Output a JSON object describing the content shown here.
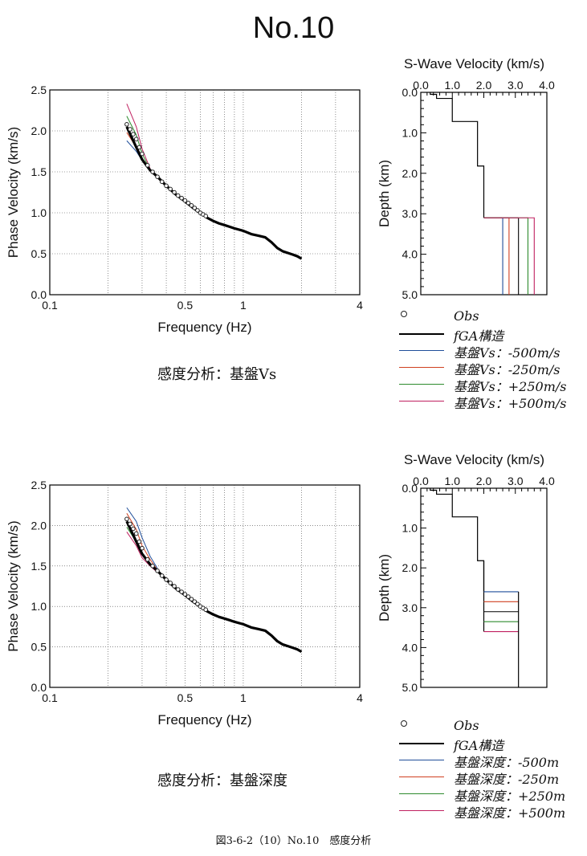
{
  "page": {
    "title": "No.10",
    "figure_caption": "図3-6-2（10）No.10　感度分析"
  },
  "chart_data": [
    {
      "type": "line",
      "title": "",
      "xlabel": "Frequency (Hz)",
      "ylabel": "Phase Velocity (km/s)",
      "xscale": "log",
      "xlim": [
        0.1,
        4
      ],
      "ylim": [
        0,
        2.5
      ],
      "xtick_labels": [
        "0.1",
        "0.5",
        "1",
        "4"
      ],
      "ytick_labels": [
        "0.0",
        "0.5",
        "1.0",
        "1.5",
        "2.0",
        "2.5"
      ],
      "grid": true,
      "caption": "感度分析：基盤Vs",
      "observed": {
        "name": "Obs",
        "x": [
          0.25,
          0.26,
          0.27,
          0.28,
          0.29,
          0.3,
          0.32,
          0.34,
          0.36,
          0.38,
          0.4,
          0.42,
          0.44,
          0.46,
          0.48,
          0.5,
          0.52,
          0.54,
          0.56,
          0.58,
          0.6,
          0.62,
          0.64
        ],
        "y": [
          2.08,
          2.02,
          1.96,
          1.9,
          1.8,
          1.72,
          1.58,
          1.5,
          1.44,
          1.38,
          1.33,
          1.29,
          1.25,
          1.21,
          1.18,
          1.15,
          1.12,
          1.09,
          1.06,
          1.03,
          1.0,
          0.98,
          0.96
        ]
      },
      "series": [
        {
          "name": "fGA構造",
          "color": "#000000",
          "x": [
            0.25,
            0.28,
            0.3,
            0.33,
            0.36,
            0.4,
            0.45,
            0.5,
            0.55,
            0.6,
            0.65,
            0.7,
            0.75,
            0.8,
            0.85,
            0.9,
            1.0,
            1.1,
            1.2,
            1.3,
            1.4,
            1.5,
            1.6,
            1.7,
            1.8,
            1.9,
            2.0
          ],
          "y": [
            2.05,
            1.8,
            1.65,
            1.52,
            1.44,
            1.33,
            1.22,
            1.14,
            1.06,
            1.0,
            0.94,
            0.9,
            0.87,
            0.85,
            0.83,
            0.81,
            0.78,
            0.74,
            0.72,
            0.7,
            0.64,
            0.57,
            0.53,
            0.51,
            0.49,
            0.47,
            0.44
          ]
        },
        {
          "name": "基盤Vs：-500m/s",
          "color": "#1f4e9a",
          "x": [
            0.25,
            0.28,
            0.3,
            0.33
          ],
          "y": [
            1.88,
            1.75,
            1.64,
            1.52
          ]
        },
        {
          "name": "基盤Vs：-250m/s",
          "color": "#d04020",
          "x": [
            0.25,
            0.28,
            0.3,
            0.33
          ],
          "y": [
            1.98,
            1.8,
            1.66,
            1.52
          ]
        },
        {
          "name": "基盤Vs：+250m/s",
          "color": "#2e8b2e",
          "x": [
            0.25,
            0.28,
            0.3,
            0.33
          ],
          "y": [
            2.18,
            1.95,
            1.72,
            1.53
          ]
        },
        {
          "name": "基盤Vs：+500m/s",
          "color": "#c02060",
          "x": [
            0.25,
            0.28,
            0.3,
            0.33
          ],
          "y": [
            2.33,
            2.05,
            1.78,
            1.54
          ]
        }
      ]
    },
    {
      "type": "line",
      "title": "S-Wave Velocity (km/s)",
      "xlabel": "S-Wave Velocity (km/s)",
      "ylabel": "Depth (km)",
      "xlim": [
        0,
        4
      ],
      "ylim": [
        5,
        0
      ],
      "xtick_labels": [
        "0.0",
        "1.0",
        "2.0",
        "3.0",
        "4.0"
      ],
      "ytick_labels": [
        "0.0",
        "1.0",
        "2.0",
        "3.0",
        "4.0",
        "5.0"
      ],
      "layers_base": {
        "velocity": [
          0.3,
          0.5,
          1.0,
          1.8,
          2.0
        ],
        "top_depth": [
          0.0,
          0.05,
          0.15,
          0.72,
          1.82
        ]
      },
      "halfspace_depth": 3.1,
      "halfspace_velocities": [
        2.6,
        2.8,
        3.1,
        3.4,
        3.6
      ],
      "halfspace_colors": [
        "#1f4e9a",
        "#d04020",
        "#000000",
        "#2e8b2e",
        "#c02060"
      ]
    },
    {
      "type": "line",
      "title": "",
      "xlabel": "Frequency (Hz)",
      "ylabel": "Phase Velocity (km/s)",
      "xscale": "log",
      "xlim": [
        0.1,
        4
      ],
      "ylim": [
        0,
        2.5
      ],
      "xtick_labels": [
        "0.1",
        "0.5",
        "1",
        "4"
      ],
      "ytick_labels": [
        "0.0",
        "0.5",
        "1.0",
        "1.5",
        "2.0",
        "2.5"
      ],
      "grid": true,
      "caption": "感度分析：基盤深度",
      "observed": {
        "name": "Obs",
        "x": [
          0.25,
          0.26,
          0.27,
          0.28,
          0.29,
          0.3,
          0.32,
          0.34,
          0.36,
          0.38,
          0.4,
          0.42,
          0.44,
          0.46,
          0.48,
          0.5,
          0.52,
          0.54,
          0.56,
          0.58,
          0.6,
          0.62,
          0.64
        ],
        "y": [
          2.08,
          2.02,
          1.96,
          1.9,
          1.8,
          1.72,
          1.58,
          1.5,
          1.44,
          1.38,
          1.33,
          1.29,
          1.25,
          1.21,
          1.18,
          1.15,
          1.12,
          1.09,
          1.06,
          1.03,
          1.0,
          0.98,
          0.96
        ]
      },
      "series": [
        {
          "name": "fGA構造",
          "color": "#000000",
          "x": [
            0.25,
            0.28,
            0.3,
            0.33,
            0.36,
            0.4,
            0.45,
            0.5,
            0.55,
            0.6,
            0.65,
            0.7,
            0.75,
            0.8,
            0.85,
            0.9,
            1.0,
            1.1,
            1.2,
            1.3,
            1.4,
            1.5,
            1.6,
            1.7,
            1.8,
            1.9,
            2.0
          ],
          "y": [
            2.05,
            1.8,
            1.65,
            1.52,
            1.44,
            1.33,
            1.22,
            1.14,
            1.06,
            1.0,
            0.94,
            0.9,
            0.87,
            0.85,
            0.83,
            0.81,
            0.78,
            0.74,
            0.72,
            0.7,
            0.64,
            0.57,
            0.53,
            0.51,
            0.49,
            0.47,
            0.44
          ]
        },
        {
          "name": "基盤深度：-500m",
          "color": "#1f4e9a",
          "x": [
            0.25,
            0.28,
            0.3,
            0.33,
            0.36
          ],
          "y": [
            2.22,
            2.05,
            1.85,
            1.62,
            1.47
          ]
        },
        {
          "name": "基盤深度：-250m",
          "color": "#d04020",
          "x": [
            0.25,
            0.28,
            0.3,
            0.33,
            0.36
          ],
          "y": [
            2.15,
            1.95,
            1.75,
            1.58,
            1.45
          ]
        },
        {
          "name": "基盤深度：+250m",
          "color": "#2e8b2e",
          "x": [
            0.25,
            0.28,
            0.3,
            0.33,
            0.36
          ],
          "y": [
            1.98,
            1.8,
            1.65,
            1.52,
            1.43
          ]
        },
        {
          "name": "基盤深度：+500m",
          "color": "#c02060",
          "x": [
            0.25,
            0.28,
            0.3,
            0.33,
            0.36
          ],
          "y": [
            1.92,
            1.75,
            1.6,
            1.5,
            1.42
          ]
        }
      ]
    },
    {
      "type": "line",
      "title": "S-Wave Velocity (km/s)",
      "xlabel": "S-Wave Velocity (km/s)",
      "ylabel": "Depth (km)",
      "xlim": [
        0,
        4
      ],
      "ylim": [
        5,
        0
      ],
      "xtick_labels": [
        "0.0",
        "1.0",
        "2.0",
        "3.0",
        "4.0"
      ],
      "ytick_labels": [
        "0.0",
        "1.0",
        "2.0",
        "3.0",
        "4.0",
        "5.0"
      ],
      "layers_base": {
        "velocity": [
          0.3,
          0.5,
          1.0,
          1.8,
          2.0
        ],
        "top_depth": [
          0.0,
          0.05,
          0.15,
          0.72,
          1.82
        ]
      },
      "halfspace_velocity": 3.1,
      "halfspace_depths": [
        2.6,
        2.85,
        3.1,
        3.35,
        3.6
      ],
      "halfspace_colors": [
        "#1f4e9a",
        "#d04020",
        "#000000",
        "#2e8b2e",
        "#c02060"
      ]
    }
  ],
  "legend_top": [
    {
      "label": "Obs",
      "marker": "circle",
      "color": "#000000"
    },
    {
      "label": "fGA構造",
      "color": "#000000"
    },
    {
      "label": "基盤Vs：-500m/s",
      "color": "#1f4e9a"
    },
    {
      "label": "基盤Vs：-250m/s",
      "color": "#d04020"
    },
    {
      "label": "基盤Vs：+250m/s",
      "color": "#2e8b2e"
    },
    {
      "label": "基盤Vs：+500m/s",
      "color": "#c02060"
    }
  ],
  "legend_bottom": [
    {
      "label": "Obs",
      "marker": "circle",
      "color": "#000000"
    },
    {
      "label": "fGA構造",
      "color": "#000000"
    },
    {
      "label": "基盤深度：-500m",
      "color": "#1f4e9a"
    },
    {
      "label": "基盤深度：-250m",
      "color": "#d04020"
    },
    {
      "label": "基盤深度：+250m",
      "color": "#2e8b2e"
    },
    {
      "label": "基盤深度：+500m",
      "color": "#c02060"
    }
  ]
}
